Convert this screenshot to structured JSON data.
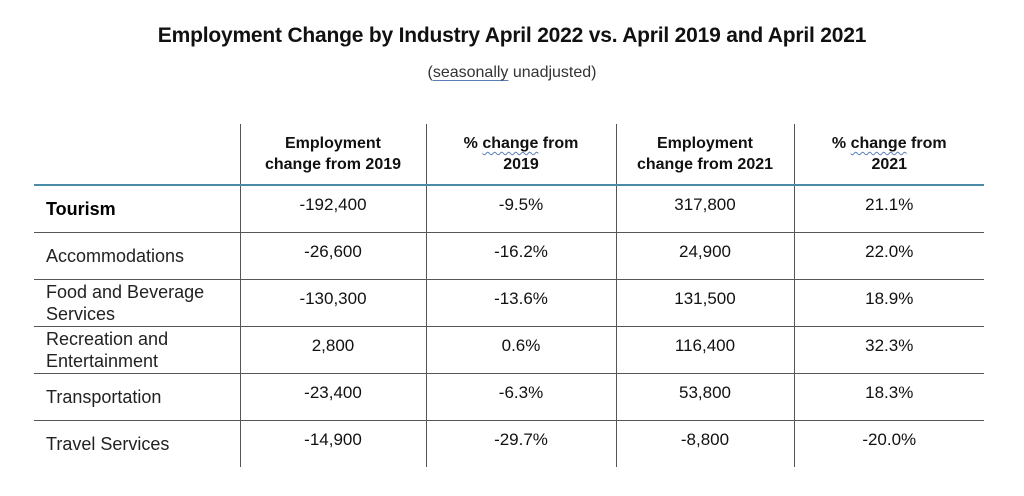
{
  "title": "Employment Change by Industry April 2022 vs. April 2019 and April 2021",
  "subtitle": {
    "open": "(",
    "underlined": "seasonally",
    "rest": " unadjusted)"
  },
  "table": {
    "headers": [
      "",
      {
        "line1": "Employment",
        "line2": "change from 2019"
      },
      {
        "pre": "% ",
        "squiggle": "change",
        "post": " from",
        "line2": "2019"
      },
      {
        "line1": "Employment",
        "line2": "change from 2021"
      },
      {
        "pre": "% ",
        "squiggle": "change",
        "post": " from",
        "line2": "2021"
      }
    ],
    "rows": [
      {
        "label": "Tourism",
        "emp2019": "-192,400",
        "pct2019": "-9.5%",
        "emp2021": "317,800",
        "pct2021": "21.1%"
      },
      {
        "label": "Accommodations",
        "emp2019": "-26,600",
        "pct2019": "-16.2%",
        "emp2021": "24,900",
        "pct2021": "22.0%"
      },
      {
        "label": "Food and Beverage Services",
        "emp2019": "-130,300",
        "pct2019": "-13.6%",
        "emp2021": "131,500",
        "pct2021": "18.9%"
      },
      {
        "label": "Recreation and Entertainment",
        "emp2019": "2,800",
        "pct2019": "0.6%",
        "emp2021": "116,400",
        "pct2021": "32.3%"
      },
      {
        "label": "Transportation",
        "emp2019": "-23,400",
        "pct2019": "-6.3%",
        "emp2021": "53,800",
        "pct2021": "18.3%"
      },
      {
        "label": "Travel Services",
        "emp2019": "-14,900",
        "pct2019": "-29.7%",
        "emp2021": "-8,800",
        "pct2021": "-20.0%"
      }
    ]
  }
}
